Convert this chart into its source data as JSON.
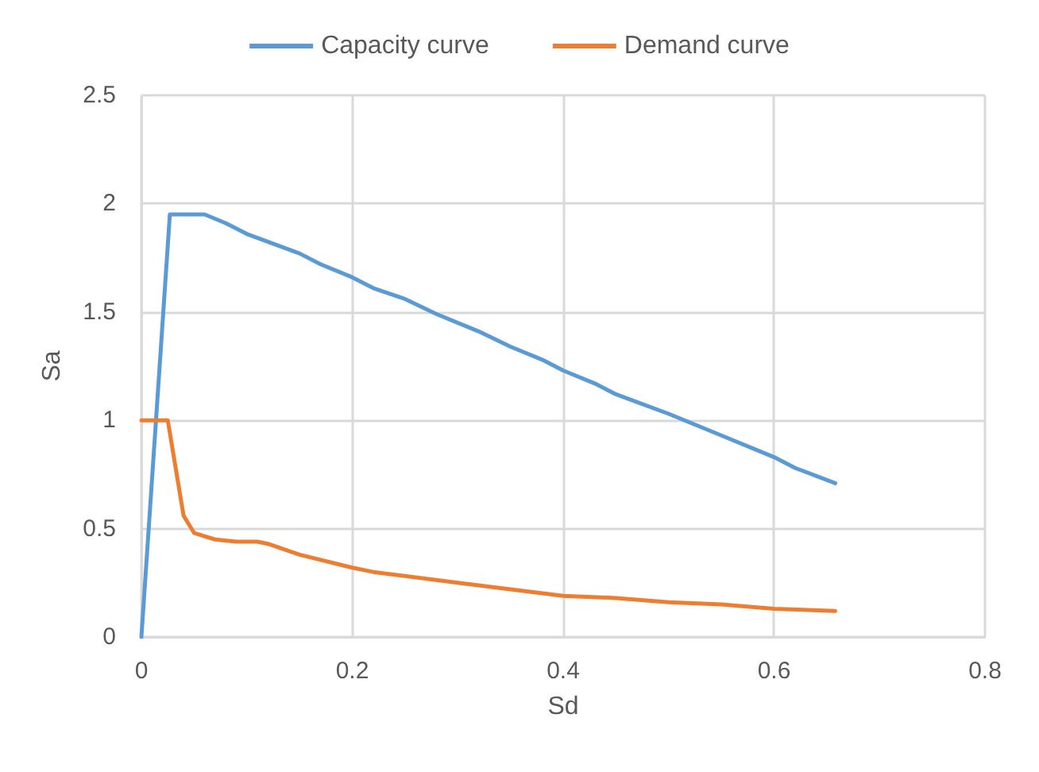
{
  "chart_data": {
    "type": "line",
    "xlabel": "Sd",
    "ylabel": "Sa",
    "xlim": [
      0,
      0.8
    ],
    "xticks": [
      0,
      0.2,
      0.4,
      0.6,
      0.8
    ],
    "ylim": [
      0,
      2.5
    ],
    "yticks": [
      0,
      0.5,
      1,
      1.5,
      2,
      2.5
    ],
    "grid": true,
    "legend": "top",
    "marker": "none",
    "line_style": "solid",
    "series": [
      {
        "name": "Capacity curve",
        "color": "#5b9bd5",
        "x": [
          0,
          0.027,
          0.06,
          0.08,
          0.1,
          0.15,
          0.17,
          0.2,
          0.22,
          0.25,
          0.28,
          0.32,
          0.35,
          0.38,
          0.4,
          0.43,
          0.45,
          0.5,
          0.55,
          0.6,
          0.62,
          0.658
        ],
        "values": [
          0,
          1.95,
          1.95,
          1.91,
          1.86,
          1.77,
          1.72,
          1.66,
          1.61,
          1.56,
          1.49,
          1.41,
          1.34,
          1.28,
          1.23,
          1.17,
          1.12,
          1.03,
          0.93,
          0.83,
          0.78,
          0.71
        ]
      },
      {
        "name": "Demand curve",
        "color": "#ed7d31",
        "x": [
          0,
          0.025,
          0.04,
          0.05,
          0.07,
          0.09,
          0.11,
          0.12,
          0.15,
          0.2,
          0.22,
          0.3,
          0.35,
          0.4,
          0.45,
          0.5,
          0.55,
          0.6,
          0.658
        ],
        "values": [
          1,
          1,
          0.56,
          0.48,
          0.45,
          0.44,
          0.44,
          0.43,
          0.38,
          0.32,
          0.3,
          0.25,
          0.22,
          0.19,
          0.18,
          0.16,
          0.15,
          0.13,
          0.12
        ]
      }
    ]
  }
}
